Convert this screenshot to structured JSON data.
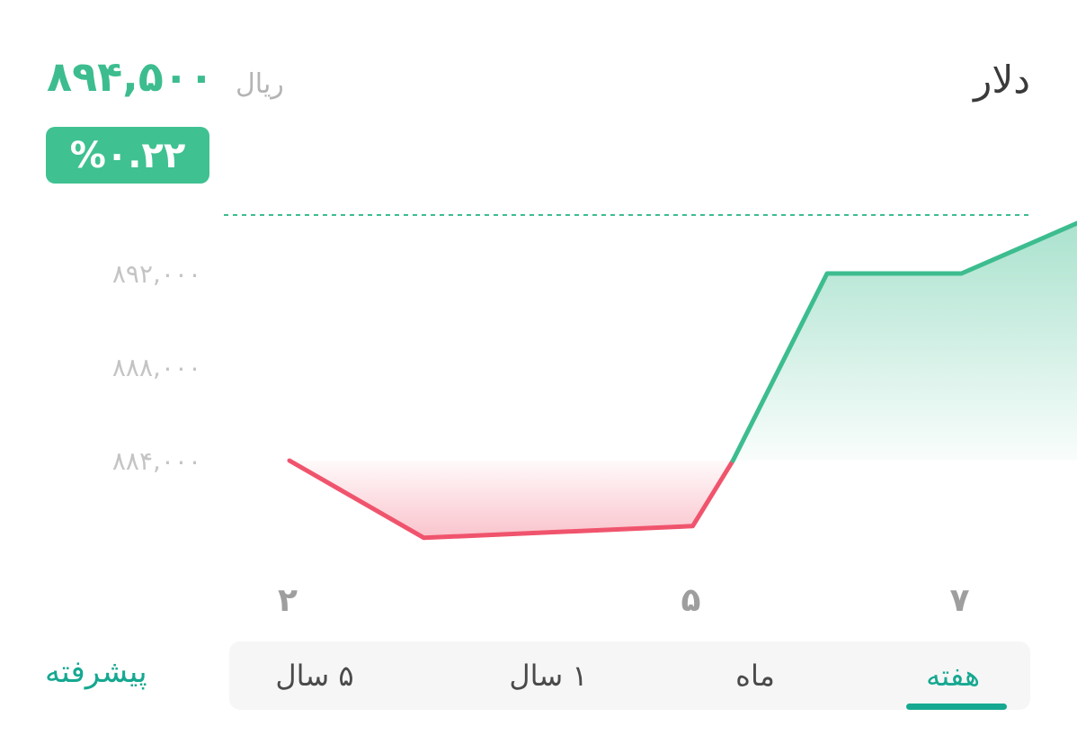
{
  "header": {
    "title": "دلار",
    "price": "۸۹۴,۵۰۰",
    "unit": "ریال",
    "change_badge": "%۰.۲۲"
  },
  "colors": {
    "up": "#3dbd8f",
    "down": "#f0546d",
    "accent": "#16a891",
    "badge": "#3fc191"
  },
  "chart_data": {
    "type": "line",
    "x": [
      2,
      3,
      5,
      5.3,
      6,
      7,
      8
    ],
    "y": [
      884000,
      880700,
      881200,
      884000,
      892000,
      892000,
      894500
    ],
    "baseline": 884000,
    "reference_line": 894500,
    "xticks": [
      "۲",
      "۵",
      "۷"
    ],
    "yticks": [
      "۸۹۲,۰۰۰",
      "۸۸۸,۰۰۰",
      "۸۸۴,۰۰۰"
    ],
    "ytick_values": [
      892000,
      888000,
      884000
    ],
    "grid": false,
    "legend": "none"
  },
  "tabs": [
    {
      "label": "هفته",
      "active": true
    },
    {
      "label": "ماه",
      "active": false
    },
    {
      "label": "۱ سال",
      "active": false
    },
    {
      "label": "۵ سال",
      "active": false
    }
  ],
  "advanced_label": "پیشرفته"
}
